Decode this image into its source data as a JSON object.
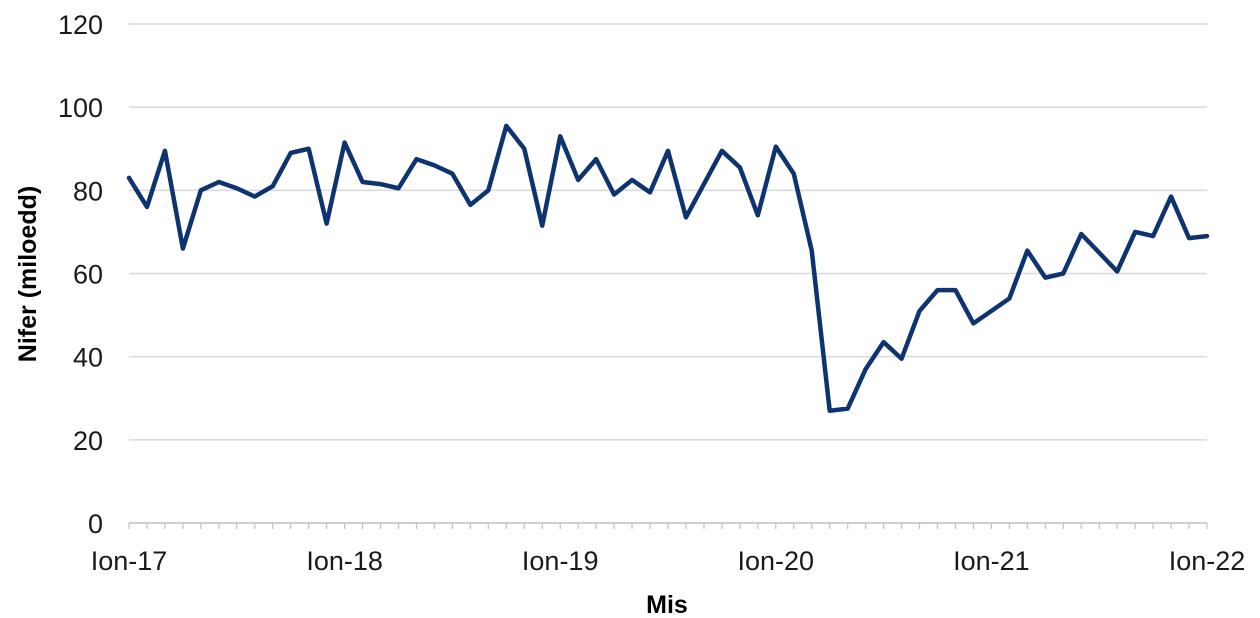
{
  "chart_data": {
    "type": "line",
    "xlabel": "Mis",
    "ylabel": "Nifer (miloedd)",
    "ylim": [
      0,
      120
    ],
    "yticks": [
      "0",
      "20",
      "40",
      "60",
      "80",
      "100",
      "120"
    ],
    "xticks": [
      "Ion-17",
      "Ion-18",
      "Ion-19",
      "Ion-20",
      "Ion-21",
      "Ion-22"
    ],
    "x_start": "Ion-17",
    "x_end": "Ion-22",
    "grid": "horizontal",
    "line_color": "#0d3370",
    "series": [
      {
        "values": [
          83,
          76,
          89.5,
          66,
          80,
          82,
          80.5,
          78.5,
          81,
          89,
          90,
          72,
          91.5,
          82,
          81.5,
          80.5,
          87.5,
          86,
          84,
          76.5,
          80,
          95.5,
          90,
          71.5,
          93,
          82.5,
          87.5,
          79,
          82.5,
          79.5,
          89.5,
          73.5,
          81.5,
          89.5,
          85.5,
          74,
          90.5,
          84,
          65.5,
          27,
          27.5,
          37,
          43.5,
          39.5,
          51,
          56,
          56,
          48,
          51,
          54,
          65.5,
          59,
          60,
          69.5,
          65,
          60.5,
          70,
          69,
          78.5,
          68.5,
          69
        ]
      }
    ]
  }
}
